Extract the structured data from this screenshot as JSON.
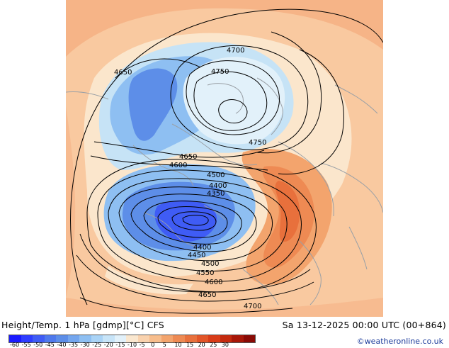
{
  "caption": {
    "title": "Height/Temp. 1 hPa [gdmp][°C] CFS",
    "datetime": "Sa 13-12-2025 00:00 UTC (00+864)"
  },
  "credit": "©weatheronline.co.uk",
  "colorbar": {
    "colors": [
      "#1a1aff",
      "#2e3dff",
      "#3f5cf5",
      "#4f79ec",
      "#5d8ee8",
      "#74a6ee",
      "#8ebff2",
      "#a9d3f6",
      "#c7e4f8",
      "#e2f1fa",
      "#fae7cf",
      "#f9d2ae",
      "#f7bd8c",
      "#f3a46d",
      "#ee8a53",
      "#e8703c",
      "#e25528",
      "#d83c18",
      "#c42a0e",
      "#a81708",
      "#8a0a05"
    ],
    "ticks": [
      "-60",
      "-55",
      "-50",
      "-45",
      "-40",
      "-35",
      "-30",
      "-25",
      "-20",
      "-15",
      "-10",
      "-5",
      "0",
      "5",
      "10",
      "15",
      "20",
      "25",
      "30"
    ]
  },
  "contour_labels": [
    {
      "text": "4700"
    },
    {
      "text": "4650"
    },
    {
      "text": "4750"
    },
    {
      "text": "4750"
    },
    {
      "text": "4650"
    },
    {
      "text": "4600"
    },
    {
      "text": "4500"
    },
    {
      "text": "4400"
    },
    {
      "text": "4350"
    },
    {
      "text": "4400"
    },
    {
      "text": "4450"
    },
    {
      "text": "4500"
    },
    {
      "text": "4550"
    },
    {
      "text": "4600"
    },
    {
      "text": "4650"
    },
    {
      "text": "4700"
    }
  ]
}
